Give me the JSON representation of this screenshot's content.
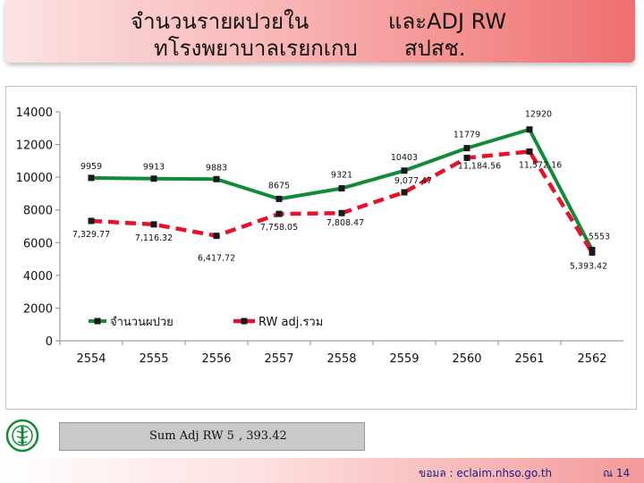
{
  "title": {
    "line1_left": "จำนวนรายผปวยใน",
    "line1_right": "และADJ RW",
    "line2_left": "ทโรงพยาบาลเรยกเกบ",
    "line2_right": "สปสช."
  },
  "chart_data": {
    "type": "line",
    "categories": [
      "2554",
      "2555",
      "2556",
      "2557",
      "2558",
      "2559",
      "2560",
      "2561",
      "2562"
    ],
    "ylim": [
      0,
      14000
    ],
    "yticks": [
      "0",
      "2000",
      "4000",
      "6000",
      "8000",
      "10000",
      "12000",
      "14000"
    ],
    "grid": false,
    "legend_position": "inside-lower-left",
    "series": [
      {
        "name": "จำนวนผปวย",
        "color": "#138a36",
        "values": [
          9959,
          9913,
          9883,
          8675,
          9321,
          10403,
          11779,
          12920,
          5553
        ],
        "labels": [
          "9959",
          "9913",
          "9883",
          "8675",
          "9321",
          "10403",
          "11779",
          "12920",
          "5553"
        ]
      },
      {
        "name": "RW adj.รวม",
        "color": "#e8102a",
        "values": [
          7329.77,
          7116.32,
          6417.72,
          7758.05,
          7808.47,
          9077.47,
          11184.56,
          11572.16,
          5393.42
        ],
        "labels": [
          "7,329.77",
          "7,116.32",
          "6,417.72",
          "7,758.05",
          "7,808.47",
          "9,077.47",
          "11,184.56",
          "11,572.16",
          "5,393.42"
        ]
      }
    ]
  },
  "summary": {
    "label": "Sum Adj RW 5",
    "value": ", 393.42"
  },
  "footer": {
    "source": "ขอมล : eclaim.nhso.go.th",
    "page": "ณ 14"
  },
  "colors": {
    "banner_accent": "#ef6e6e",
    "patients_line": "#138a36",
    "rw_line": "#e8102a",
    "summary_box": "#c9c9c9",
    "footer_text": "#1a1a8a"
  },
  "icons": {
    "logo": "moph-logo-icon"
  }
}
